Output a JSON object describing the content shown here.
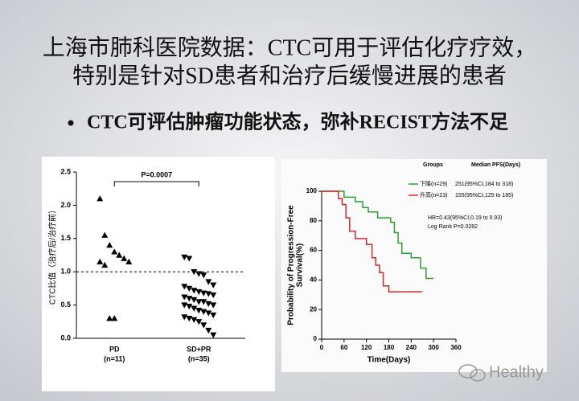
{
  "title": [
    "上海市肺科医院数据：CTC可用于评估化疗疗效，",
    "特别是针对SD患者和治疗后缓慢进展的患者"
  ],
  "bullet": "CTC可评估肿瘤功能状态，弥补RECIST方法不足",
  "watermark": "Healthy",
  "chart_data": [
    {
      "type": "strip",
      "y_label": "CTC比值（治疗后/治疗前）",
      "annotation": "P=0.0007",
      "reference_line": 1.0,
      "ylim": [
        0,
        2.5
      ],
      "yticks": [
        {
          "value": 0,
          "label": "0.0"
        },
        {
          "value": 0.5,
          "label": "0.5"
        },
        {
          "value": 1,
          "label": "1.0"
        },
        {
          "value": 1.5,
          "label": "1.5"
        },
        {
          "value": 2,
          "label": "2.0"
        },
        {
          "value": 2.5,
          "label": "2.5"
        }
      ],
      "groups": [
        {
          "category": "PD",
          "sublabel": "(n=11)",
          "marker": "triangle-up",
          "color": "#000000",
          "values": [
            2.1,
            1.55,
            1.4,
            1.3,
            1.25,
            1.2,
            1.15,
            1.15,
            1.1,
            0.3,
            0.3
          ]
        },
        {
          "category": "SD+PR",
          "sublabel": "(n=35)",
          "marker": "triangle-down",
          "color": "#000000",
          "values": [
            1.22,
            1.2,
            1.0,
            0.97,
            0.95,
            0.85,
            0.8,
            0.78,
            0.75,
            0.72,
            0.7,
            0.68,
            0.67,
            0.65,
            0.62,
            0.6,
            0.58,
            0.55,
            0.55,
            0.52,
            0.5,
            0.5,
            0.48,
            0.45,
            0.42,
            0.4,
            0.38,
            0.35,
            0.32,
            0.3,
            0.28,
            0.25,
            0.2,
            0.12,
            0.05
          ]
        }
      ]
    },
    {
      "type": "line",
      "y_label": [
        "Probability of Progression-Free",
        "Survival(%)"
      ],
      "x_label": "Time(Days)",
      "legend_headers": [
        "Groups",
        "Median PFS(Days)"
      ],
      "annotations": [
        "HR=0.43(95%CI,0.19 to 0.93)",
        "Log Rank P=0.0282"
      ],
      "xlim": [
        0,
        360
      ],
      "xticks": [
        0,
        60,
        120,
        180,
        240,
        300,
        360
      ],
      "ylim": [
        0,
        100
      ],
      "yticks": [
        0,
        20,
        40,
        60,
        80,
        100
      ],
      "series": [
        {
          "name": "下降(n=29)",
          "median": "251(95%CI,184 to 318)",
          "color": "#2ca02c",
          "x": [
            0,
            60,
            60,
            90,
            90,
            110,
            110,
            125,
            125,
            150,
            150,
            185,
            185,
            195,
            195,
            205,
            205,
            215,
            215,
            240,
            240,
            265,
            265,
            280,
            280,
            300
          ],
          "values": [
            100,
            100,
            96,
            96,
            93,
            93,
            89,
            89,
            86,
            86,
            82,
            82,
            79,
            79,
            72,
            72,
            65,
            65,
            58,
            58,
            55,
            55,
            48,
            48,
            41,
            41
          ]
        },
        {
          "name": "升高(n=23)",
          "median": "155(95%CI,125 to 185)",
          "color": "#d62728",
          "x": [
            0,
            45,
            45,
            55,
            55,
            65,
            65,
            75,
            75,
            90,
            90,
            120,
            120,
            135,
            135,
            145,
            145,
            155,
            155,
            165,
            165,
            180,
            180,
            270
          ],
          "values": [
            100,
            100,
            95,
            95,
            91,
            91,
            82,
            82,
            73,
            73,
            68,
            68,
            64,
            64,
            55,
            55,
            50,
            50,
            45,
            45,
            36,
            36,
            32,
            32
          ]
        }
      ]
    }
  ]
}
